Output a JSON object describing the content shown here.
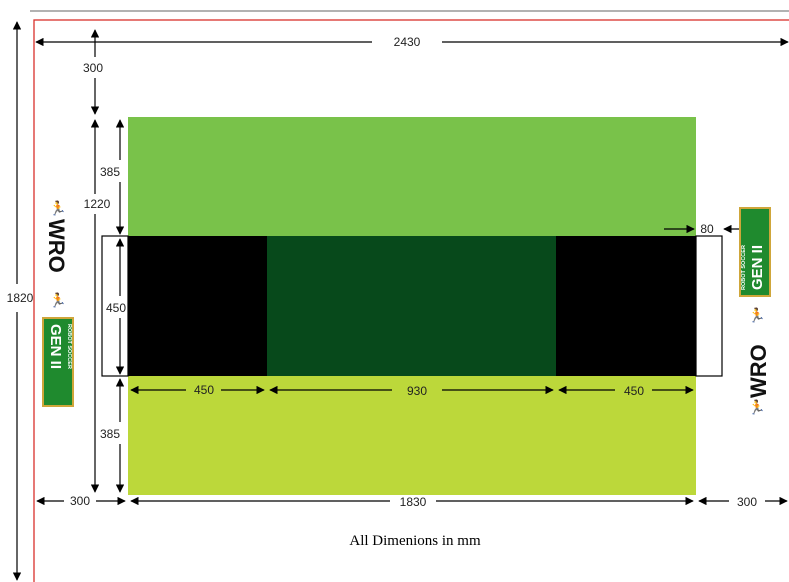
{
  "caption": "All Dimenions in mm",
  "dimensions": {
    "total_width": "2430",
    "total_height": "1820",
    "top_margin": "300",
    "green_height_top": "385",
    "inner_height": "1220",
    "middle_height": "450",
    "green_height_bottom": "385",
    "goal_depth": "80",
    "left_black_width": "450",
    "center_width": "930",
    "right_black_width": "450",
    "left_margin": "300",
    "field_width": "1830",
    "right_margin": "300"
  },
  "logos": {
    "wro": "WRO",
    "gen": "GEN II",
    "gen_sub": "ROBOT SOCCER"
  },
  "colors": {
    "top_green": "#79c24a",
    "bottom_green": "#bcd83a",
    "center_dark_green": "#07491b",
    "black_zone": "#000000",
    "border_red": "#d9312b",
    "wro_orange": "#e37a1f"
  }
}
